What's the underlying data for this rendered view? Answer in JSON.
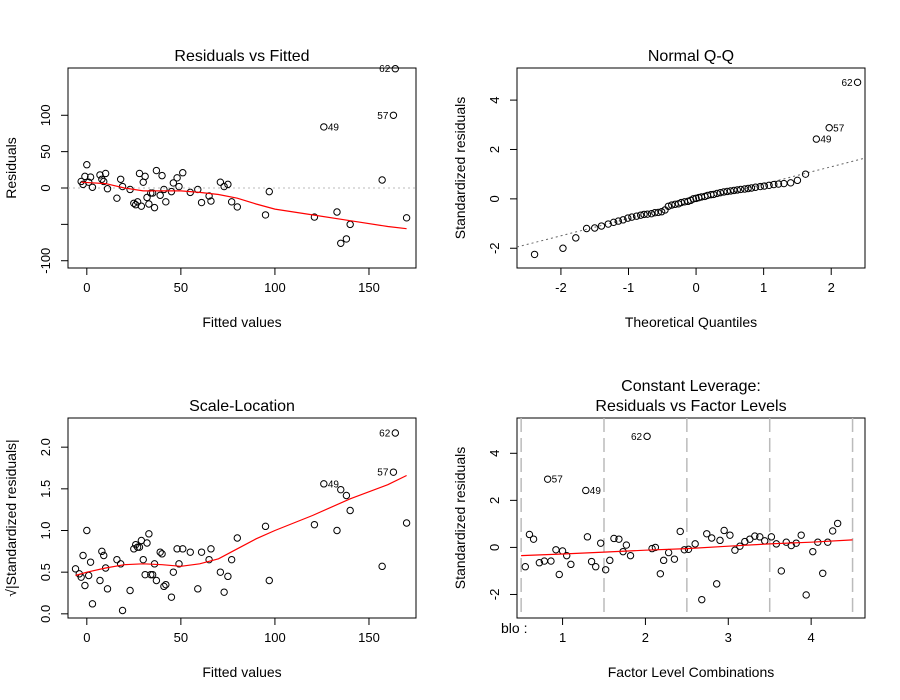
{
  "chart_data": [
    {
      "id": "rvf",
      "type": "scatter",
      "title": "Residuals vs Fitted",
      "xlabel": "Fitted values",
      "ylabel": "Residuals",
      "xlim": [
        -10,
        175
      ],
      "ylim": [
        -110,
        165
      ],
      "xticks": [
        0,
        50,
        100,
        150
      ],
      "yticks": [
        -100,
        -50,
        0,
        50,
        100
      ],
      "ytick_labels": [
        "-100",
        "",
        "0",
        "50",
        "100"
      ],
      "ref_y": 0,
      "points": [
        [
          -3,
          9
        ],
        [
          -2,
          5
        ],
        [
          -1,
          16
        ],
        [
          0,
          32
        ],
        [
          1,
          8
        ],
        [
          2,
          15
        ],
        [
          3,
          1
        ],
        [
          7,
          18
        ],
        [
          8,
          12
        ],
        [
          9,
          9
        ],
        [
          10,
          20
        ],
        [
          11,
          -1
        ],
        [
          16,
          -14
        ],
        [
          18,
          12
        ],
        [
          19,
          2
        ],
        [
          23,
          -2
        ],
        [
          25,
          -21
        ],
        [
          26,
          -23
        ],
        [
          27,
          -19
        ],
        [
          28,
          20
        ],
        [
          29,
          -25
        ],
        [
          30,
          8
        ],
        [
          31,
          16
        ],
        [
          32,
          -13
        ],
        [
          33,
          -22
        ],
        [
          34,
          -7
        ],
        [
          35,
          -7
        ],
        [
          36,
          -27
        ],
        [
          37,
          24
        ],
        [
          39,
          -10
        ],
        [
          40,
          17
        ],
        [
          41,
          -2
        ],
        [
          42,
          -19
        ],
        [
          45,
          -5
        ],
        [
          46,
          7
        ],
        [
          48,
          14
        ],
        [
          49,
          2
        ],
        [
          51,
          21
        ],
        [
          55,
          -6
        ],
        [
          59,
          -2
        ],
        [
          61,
          -20
        ],
        [
          65,
          -11
        ],
        [
          66,
          -18
        ],
        [
          71,
          8
        ],
        [
          73,
          2
        ],
        [
          75,
          5
        ],
        [
          77,
          -19
        ],
        [
          80,
          -26
        ],
        [
          95,
          -37
        ],
        [
          97,
          -5
        ],
        [
          121,
          -40
        ],
        [
          126,
          84
        ],
        [
          133,
          -33
        ],
        [
          135,
          -76
        ],
        [
          138,
          -70
        ],
        [
          140,
          -50
        ],
        [
          157,
          11
        ],
        [
          163,
          100
        ],
        [
          164,
          164
        ],
        [
          170,
          -41
        ]
      ],
      "smooth": [
        [
          -3,
          8
        ],
        [
          10,
          6
        ],
        [
          20,
          0
        ],
        [
          30,
          -4
        ],
        [
          40,
          -4
        ],
        [
          50,
          -4
        ],
        [
          60,
          -6
        ],
        [
          70,
          -9
        ],
        [
          80,
          -14
        ],
        [
          90,
          -22
        ],
        [
          100,
          -29
        ],
        [
          120,
          -37
        ],
        [
          140,
          -45
        ],
        [
          160,
          -53
        ],
        [
          170,
          -56
        ]
      ],
      "point_labels": [
        {
          "x": 126,
          "y": 84,
          "text": "49"
        },
        {
          "x": 163,
          "y": 100,
          "text": "57"
        },
        {
          "x": 164,
          "y": 164,
          "text": "62"
        }
      ]
    },
    {
      "id": "qq",
      "type": "scatter",
      "title": "Normal Q-Q",
      "xlabel": "Theoretical Quantiles",
      "ylabel": "Standardized residuals",
      "xlim": [
        -2.65,
        2.5
      ],
      "ylim": [
        -2.8,
        5.3
      ],
      "xticks": [
        -2,
        -1,
        0,
        1,
        2
      ],
      "yticks": [
        -2,
        0,
        2,
        4
      ],
      "refline": [
        [
          -2.65,
          -1.95
        ],
        [
          2.5,
          1.65
        ]
      ],
      "points": [
        [
          -2.39,
          -2.25
        ],
        [
          -1.97,
          -2.0
        ],
        [
          -1.78,
          -1.58
        ],
        [
          -1.62,
          -1.2
        ],
        [
          -1.5,
          -1.18
        ],
        [
          -1.4,
          -1.1
        ],
        [
          -1.3,
          -1.02
        ],
        [
          -1.22,
          -0.95
        ],
        [
          -1.15,
          -0.9
        ],
        [
          -1.08,
          -0.85
        ],
        [
          -1.01,
          -0.78
        ],
        [
          -0.95,
          -0.74
        ],
        [
          -0.88,
          -0.7
        ],
        [
          -0.82,
          -0.66
        ],
        [
          -0.77,
          -0.63
        ],
        [
          -0.72,
          -0.62
        ],
        [
          -0.66,
          -0.6
        ],
        [
          -0.61,
          -0.56
        ],
        [
          -0.56,
          -0.55
        ],
        [
          -0.51,
          -0.52
        ],
        [
          -0.46,
          -0.45
        ],
        [
          -0.41,
          -0.3
        ],
        [
          -0.36,
          -0.25
        ],
        [
          -0.31,
          -0.22
        ],
        [
          -0.26,
          -0.2
        ],
        [
          -0.22,
          -0.15
        ],
        [
          -0.17,
          -0.12
        ],
        [
          -0.12,
          -0.1
        ],
        [
          -0.08,
          -0.06
        ],
        [
          -0.04,
          0.0
        ],
        [
          0.0,
          0.02
        ],
        [
          0.04,
          0.05
        ],
        [
          0.08,
          0.08
        ],
        [
          0.13,
          0.1
        ],
        [
          0.17,
          0.14
        ],
        [
          0.22,
          0.17
        ],
        [
          0.26,
          0.18
        ],
        [
          0.31,
          0.22
        ],
        [
          0.36,
          0.25
        ],
        [
          0.41,
          0.28
        ],
        [
          0.46,
          0.3
        ],
        [
          0.51,
          0.32
        ],
        [
          0.56,
          0.34
        ],
        [
          0.61,
          0.36
        ],
        [
          0.66,
          0.38
        ],
        [
          0.72,
          0.4
        ],
        [
          0.77,
          0.42
        ],
        [
          0.82,
          0.44
        ],
        [
          0.88,
          0.47
        ],
        [
          0.95,
          0.5
        ],
        [
          1.01,
          0.52
        ],
        [
          1.08,
          0.55
        ],
        [
          1.15,
          0.58
        ],
        [
          1.22,
          0.6
        ],
        [
          1.3,
          0.62
        ],
        [
          1.4,
          0.65
        ],
        [
          1.5,
          0.75
        ],
        [
          1.62,
          1.0
        ],
        [
          1.78,
          2.42
        ],
        [
          1.97,
          2.88
        ],
        [
          2.39,
          4.72
        ]
      ],
      "point_labels": [
        {
          "x": 1.78,
          "y": 2.42,
          "text": "49"
        },
        {
          "x": 1.97,
          "y": 2.88,
          "text": "57"
        },
        {
          "x": 2.39,
          "y": 4.72,
          "text": "62"
        }
      ]
    },
    {
      "id": "sl",
      "type": "scatter",
      "title": "Scale-Location",
      "xlabel": "Fitted values",
      "ylabel": "√|Standardized residuals|",
      "xlim": [
        -10,
        175
      ],
      "ylim": [
        -0.05,
        2.35
      ],
      "xticks": [
        0,
        50,
        100,
        150
      ],
      "yticks": [
        0.0,
        0.5,
        1.0,
        1.5,
        2.0
      ],
      "ytick_labels": [
        "0.0",
        "0.5",
        "1.0",
        "1.5",
        "2.0"
      ],
      "points": [
        [
          -6,
          0.54
        ],
        [
          -4,
          0.48
        ],
        [
          -3,
          0.44
        ],
        [
          -2,
          0.7
        ],
        [
          -1,
          0.34
        ],
        [
          0,
          1.0
        ],
        [
          1,
          0.46
        ],
        [
          2,
          0.62
        ],
        [
          3,
          0.12
        ],
        [
          7,
          0.4
        ],
        [
          8,
          0.75
        ],
        [
          9,
          0.7
        ],
        [
          10,
          0.55
        ],
        [
          11,
          0.3
        ],
        [
          16,
          0.65
        ],
        [
          18,
          0.6
        ],
        [
          19,
          0.04
        ],
        [
          23,
          0.28
        ],
        [
          25,
          0.78
        ],
        [
          26,
          0.83
        ],
        [
          27,
          0.8
        ],
        [
          28,
          0.8
        ],
        [
          29,
          0.88
        ],
        [
          30,
          0.65
        ],
        [
          31,
          0.47
        ],
        [
          32,
          0.85
        ],
        [
          33,
          0.96
        ],
        [
          34,
          0.47
        ],
        [
          35,
          0.47
        ],
        [
          36,
          0.6
        ],
        [
          37,
          0.4
        ],
        [
          39,
          0.74
        ],
        [
          40,
          0.72
        ],
        [
          41,
          0.33
        ],
        [
          42,
          0.35
        ],
        [
          45,
          0.2
        ],
        [
          46,
          0.5
        ],
        [
          48,
          0.78
        ],
        [
          49,
          0.6
        ],
        [
          51,
          0.78
        ],
        [
          55,
          0.74
        ],
        [
          59,
          0.3
        ],
        [
          61,
          0.74
        ],
        [
          65,
          0.65
        ],
        [
          66,
          0.78
        ],
        [
          71,
          0.5
        ],
        [
          73,
          0.26
        ],
        [
          75,
          0.45
        ],
        [
          77,
          0.65
        ],
        [
          80,
          0.91
        ],
        [
          95,
          1.05
        ],
        [
          97,
          0.4
        ],
        [
          121,
          1.07
        ],
        [
          126,
          1.56
        ],
        [
          133,
          1.0
        ],
        [
          135,
          1.49
        ],
        [
          138,
          1.42
        ],
        [
          140,
          1.24
        ],
        [
          157,
          0.57
        ],
        [
          163,
          1.7
        ],
        [
          164,
          2.17
        ],
        [
          170,
          1.09
        ]
      ],
      "smooth": [
        [
          -6,
          0.46
        ],
        [
          0,
          0.5
        ],
        [
          10,
          0.55
        ],
        [
          20,
          0.59
        ],
        [
          30,
          0.6
        ],
        [
          40,
          0.59
        ],
        [
          50,
          0.57
        ],
        [
          60,
          0.6
        ],
        [
          70,
          0.66
        ],
        [
          80,
          0.78
        ],
        [
          90,
          0.9
        ],
        [
          100,
          1.0
        ],
        [
          120,
          1.18
        ],
        [
          140,
          1.38
        ],
        [
          160,
          1.55
        ],
        [
          170,
          1.66
        ]
      ],
      "point_labels": [
        {
          "x": 126,
          "y": 1.56,
          "text": "49"
        },
        {
          "x": 163,
          "y": 1.7,
          "text": "57"
        },
        {
          "x": 164,
          "y": 2.17,
          "text": "62"
        }
      ]
    },
    {
      "id": "cl",
      "type": "scatter",
      "title": "Constant Leverage:",
      "subtitle": "Residuals vs Factor Levels",
      "xlabel": "Factor Level Combinations",
      "ylabel": "Standardized residuals",
      "factor_label": "blo :",
      "xlim": [
        0.45,
        4.65
      ],
      "ylim": [
        -3.0,
        5.5
      ],
      "xticks": [
        1,
        2,
        3,
        4
      ],
      "yticks": [
        -2,
        0,
        2,
        4
      ],
      "group_bounds": [
        0.5,
        1.5,
        2.5,
        3.5,
        4.5
      ],
      "points": [
        [
          0.55,
          -0.82
        ],
        [
          0.6,
          0.55
        ],
        [
          0.65,
          0.35
        ],
        [
          0.72,
          -0.65
        ],
        [
          0.78,
          -0.58
        ],
        [
          0.82,
          2.9
        ],
        [
          0.86,
          -0.58
        ],
        [
          0.92,
          -0.1
        ],
        [
          0.96,
          -1.15
        ],
        [
          1.0,
          -0.15
        ],
        [
          1.05,
          -0.35
        ],
        [
          1.1,
          -0.72
        ],
        [
          1.28,
          2.42
        ],
        [
          1.3,
          0.45
        ],
        [
          1.35,
          -0.6
        ],
        [
          1.4,
          -0.82
        ],
        [
          1.46,
          0.18
        ],
        [
          1.52,
          -0.95
        ],
        [
          1.57,
          -0.55
        ],
        [
          1.62,
          0.38
        ],
        [
          1.68,
          0.35
        ],
        [
          1.73,
          -0.18
        ],
        [
          1.77,
          0.1
        ],
        [
          1.82,
          -0.35
        ],
        [
          2.02,
          4.72
        ],
        [
          2.08,
          -0.05
        ],
        [
          2.12,
          0.0
        ],
        [
          2.18,
          -1.12
        ],
        [
          2.22,
          -0.55
        ],
        [
          2.28,
          -0.22
        ],
        [
          2.35,
          -0.5
        ],
        [
          2.42,
          0.68
        ],
        [
          2.47,
          -0.1
        ],
        [
          2.52,
          -0.08
        ],
        [
          2.6,
          0.15
        ],
        [
          2.68,
          -2.22
        ],
        [
          2.74,
          0.58
        ],
        [
          2.8,
          0.4
        ],
        [
          2.86,
          -1.55
        ],
        [
          2.9,
          0.3
        ],
        [
          2.95,
          0.72
        ],
        [
          3.02,
          0.52
        ],
        [
          3.08,
          -0.12
        ],
        [
          3.14,
          0.05
        ],
        [
          3.2,
          0.25
        ],
        [
          3.26,
          0.35
        ],
        [
          3.32,
          0.48
        ],
        [
          3.38,
          0.45
        ],
        [
          3.44,
          0.28
        ],
        [
          3.52,
          0.45
        ],
        [
          3.58,
          0.15
        ],
        [
          3.64,
          -1.0
        ],
        [
          3.7,
          0.22
        ],
        [
          3.76,
          0.08
        ],
        [
          3.82,
          0.18
        ],
        [
          3.88,
          0.52
        ],
        [
          3.94,
          -2.02
        ],
        [
          4.02,
          -0.18
        ],
        [
          4.08,
          0.22
        ],
        [
          4.14,
          -1.1
        ],
        [
          4.2,
          0.22
        ],
        [
          4.26,
          0.7
        ],
        [
          4.32,
          1.02
        ]
      ],
      "smooth": [
        [
          0.5,
          -0.35
        ],
        [
          1.0,
          -0.28
        ],
        [
          1.5,
          -0.2
        ],
        [
          2.0,
          -0.12
        ],
        [
          2.5,
          -0.05
        ],
        [
          3.0,
          0.05
        ],
        [
          3.5,
          0.15
        ],
        [
          4.0,
          0.22
        ],
        [
          4.5,
          0.32
        ]
      ],
      "point_labels": [
        {
          "x": 0.82,
          "y": 2.9,
          "text": "57"
        },
        {
          "x": 1.28,
          "y": 2.42,
          "text": "49"
        },
        {
          "x": 2.02,
          "y": 4.72,
          "text": "62"
        }
      ]
    }
  ]
}
